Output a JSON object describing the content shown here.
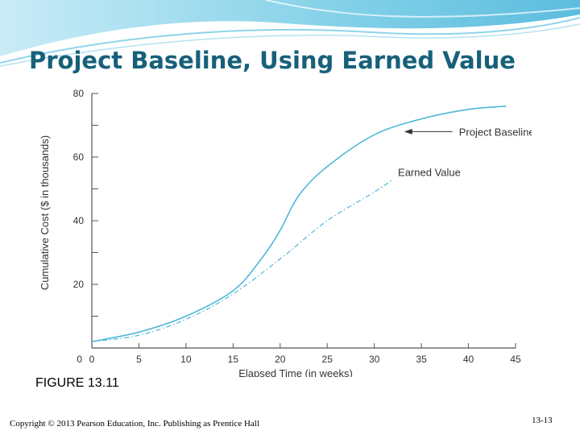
{
  "slide": {
    "title": "Project Baseline, Using Earned Value",
    "figure_label": "FIGURE 13.11",
    "copyright": "Copyright © 2013 Pearson Education, Inc. Publishing as Prentice Hall",
    "page_number": "13-13"
  },
  "colors": {
    "title": "#17607a",
    "header_wave": "#5bc2e0",
    "curve": "#4fb8d8",
    "axis": "#555555"
  },
  "chart_data": {
    "type": "line",
    "xlabel": "Elapsed Time (in weeks)",
    "ylabel": "Cumulative Cost ($ in thousands)",
    "xlim": [
      0,
      45
    ],
    "ylim": [
      0,
      80
    ],
    "x_ticks": [
      "0",
      "5",
      "10",
      "15",
      "20",
      "25",
      "30",
      "35",
      "40",
      "45"
    ],
    "y_ticks": [
      "20",
      "40",
      "60",
      "80"
    ],
    "grid": false,
    "series": [
      {
        "name": "Project Baseline",
        "style": "solid",
        "points": [
          [
            0,
            2
          ],
          [
            5,
            5
          ],
          [
            10,
            10
          ],
          [
            15,
            18
          ],
          [
            18,
            28
          ],
          [
            20,
            37
          ],
          [
            22,
            48
          ],
          [
            25,
            57
          ],
          [
            30,
            67
          ],
          [
            35,
            72
          ],
          [
            40,
            75
          ],
          [
            44,
            76
          ]
        ]
      },
      {
        "name": "Earned Value",
        "style": "dashdot",
        "points": [
          [
            0,
            2
          ],
          [
            5,
            4
          ],
          [
            10,
            9
          ],
          [
            15,
            17
          ],
          [
            20,
            28
          ],
          [
            25,
            40
          ],
          [
            30,
            49
          ],
          [
            32,
            53
          ]
        ]
      }
    ],
    "annotations": [
      {
        "text": "Project Baseline",
        "points_to": [
          33,
          68
        ]
      },
      {
        "text": "Earned Value",
        "points_to": [
          32,
          53
        ]
      }
    ]
  }
}
